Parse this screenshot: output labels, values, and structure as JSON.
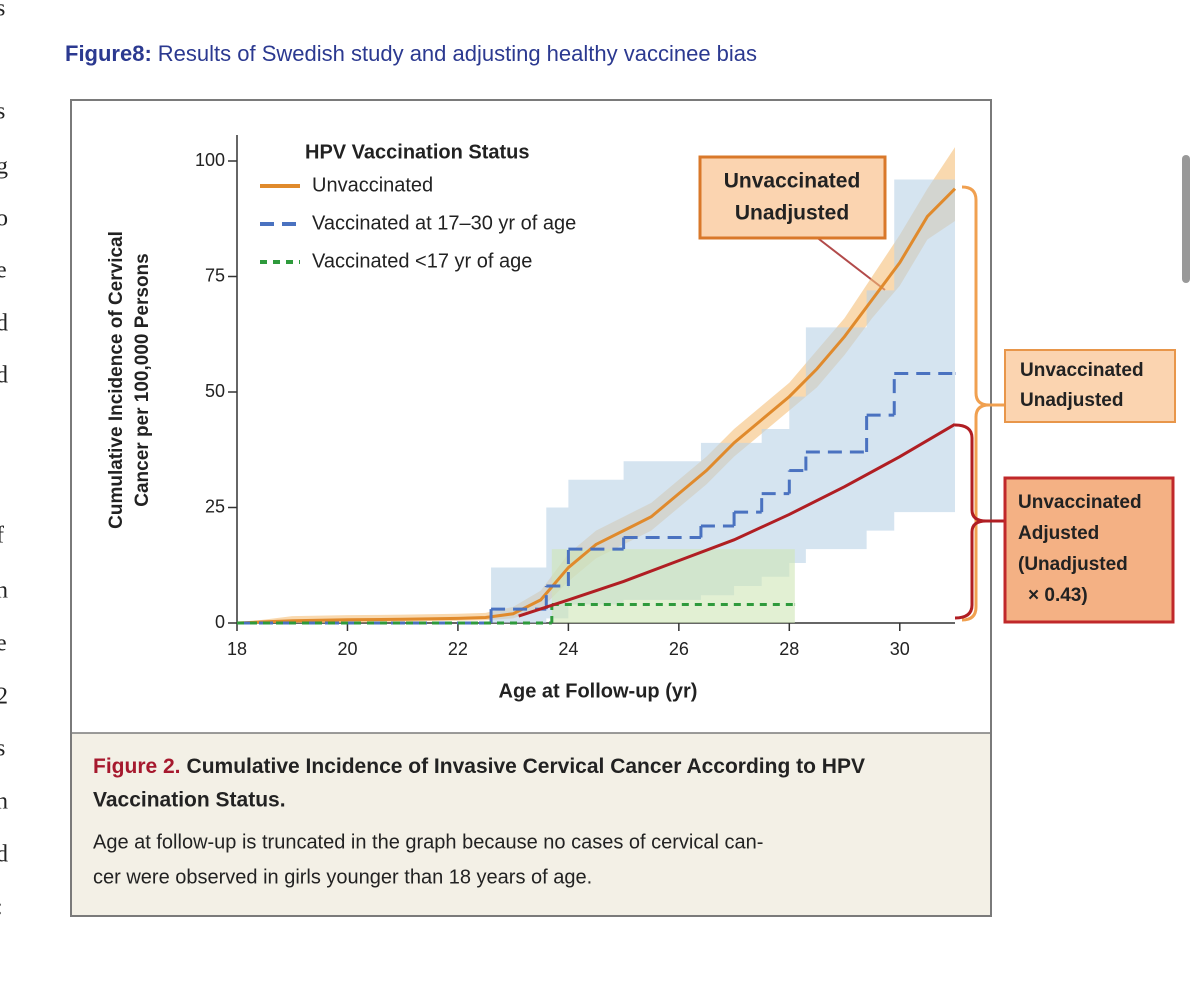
{
  "page": {
    "heading_label": "Figure8:",
    "heading_text": "Results of Swedish study and adjusting healthy vaccinee bias",
    "margin_letters": [
      "s",
      "s",
      "g",
      "o",
      "e",
      "d",
      "d",
      "f",
      "n",
      "e",
      "2",
      "s",
      "n",
      "d",
      ":"
    ],
    "caption": {
      "label": "Figure 2.",
      "title_lines": [
        "Cumulative Incidence of Invasive Cervical Cancer According to HPV",
        "Vaccination Status."
      ],
      "body_lines": [
        "Age at follow-up is truncated in the graph because no cases of cervical can-",
        "cer were observed in girls younger than 18 years of age."
      ]
    }
  },
  "chart_data": {
    "type": "line",
    "x_label": "Age at Follow-up (yr)",
    "y_label": [
      "Cumulative Incidence of Cervical",
      "Cancer per 100,000 Persons"
    ],
    "legend_title": "HPV Vaccination Status",
    "legend_loc": "upper left",
    "xlim": [
      18,
      31
    ],
    "xticks": [
      18,
      20,
      22,
      24,
      26,
      28,
      30
    ],
    "ylim": [
      0,
      100
    ],
    "yticks": [
      0,
      25,
      50,
      75,
      100
    ],
    "series": [
      {
        "name": "Unvaccinated",
        "color": "#e08a2c",
        "dash": "solid",
        "step": false,
        "ci_color": "#f5c07a",
        "x": [
          18,
          19,
          20,
          21,
          22,
          22.5,
          23,
          23.5,
          24,
          24.5,
          25,
          25.5,
          26,
          26.5,
          27,
          27.5,
          28,
          28.5,
          29,
          29.5,
          30,
          30.5,
          31
        ],
        "values": [
          0,
          0.5,
          0.7,
          0.8,
          1,
          1.2,
          2,
          5,
          12,
          17,
          20,
          23,
          28,
          33,
          39,
          44,
          49,
          55,
          62,
          70,
          78,
          88,
          94
        ],
        "ci_lower": [
          0,
          0,
          0,
          0.3,
          0.5,
          0.6,
          1,
          3,
          9,
          14,
          17,
          20,
          25,
          30,
          36,
          41,
          46,
          51,
          58,
          66,
          73,
          83,
          87
        ],
        "ci_upper": [
          0,
          1.5,
          1.7,
          1.8,
          2,
          2.2,
          3.5,
          7,
          15,
          20,
          23,
          26,
          31,
          36,
          42,
          47,
          52,
          59,
          66,
          75,
          84,
          94,
          103
        ]
      },
      {
        "name": "Vaccinated at 17–30 yr of age",
        "color": "#4a72c0",
        "dash": "dashed",
        "step": true,
        "ci_color": "#b9d2e6",
        "x": [
          18,
          22.6,
          23.6,
          24,
          25,
          26.4,
          27,
          27.5,
          28,
          28.3,
          29.4,
          29.9,
          31
        ],
        "values": [
          0,
          3,
          8,
          16,
          18.5,
          21,
          24,
          28,
          33,
          37,
          45,
          54,
          54
        ],
        "ci_lower": [
          0,
          0,
          1,
          4,
          5,
          6,
          8,
          10,
          13,
          16,
          20,
          24,
          24
        ],
        "ci_upper": [
          0,
          12,
          25,
          31,
          35,
          39,
          39,
          42,
          49,
          64,
          72,
          96,
          96
        ]
      },
      {
        "name": "Vaccinated <17 yr of age",
        "color": "#2e9a3c",
        "dash": "dotted",
        "step": true,
        "ci_color": "#cfe6b6",
        "x": [
          18,
          23.7,
          28.1
        ],
        "values": [
          0,
          4,
          4
        ],
        "ci_lower": [
          0,
          0,
          0
        ],
        "ci_upper": [
          0,
          16,
          16
        ]
      }
    ],
    "adjusted_line": {
      "color": "#b01e23",
      "x": [
        23.1,
        24,
        25,
        26,
        27,
        28,
        29,
        30,
        31
      ],
      "values": [
        1.5,
        5,
        9,
        13.5,
        18,
        23.5,
        29.5,
        36,
        43
      ]
    },
    "annotations": [
      {
        "lines": [
          "Unvaccinated",
          "Unadjusted"
        ],
        "fill": "#fbd4b0",
        "border": "#d9782a"
      },
      {
        "lines": [
          "Unvaccinated",
          "Unadjusted"
        ],
        "fill": "#fbd4b0",
        "border": "#e8964a"
      },
      {
        "lines": [
          "Unvaccinated",
          "Adjusted",
          "(Unadjusted",
          "× 0.43)"
        ],
        "fill": "#f4b184",
        "border": "#c0282a"
      }
    ]
  }
}
